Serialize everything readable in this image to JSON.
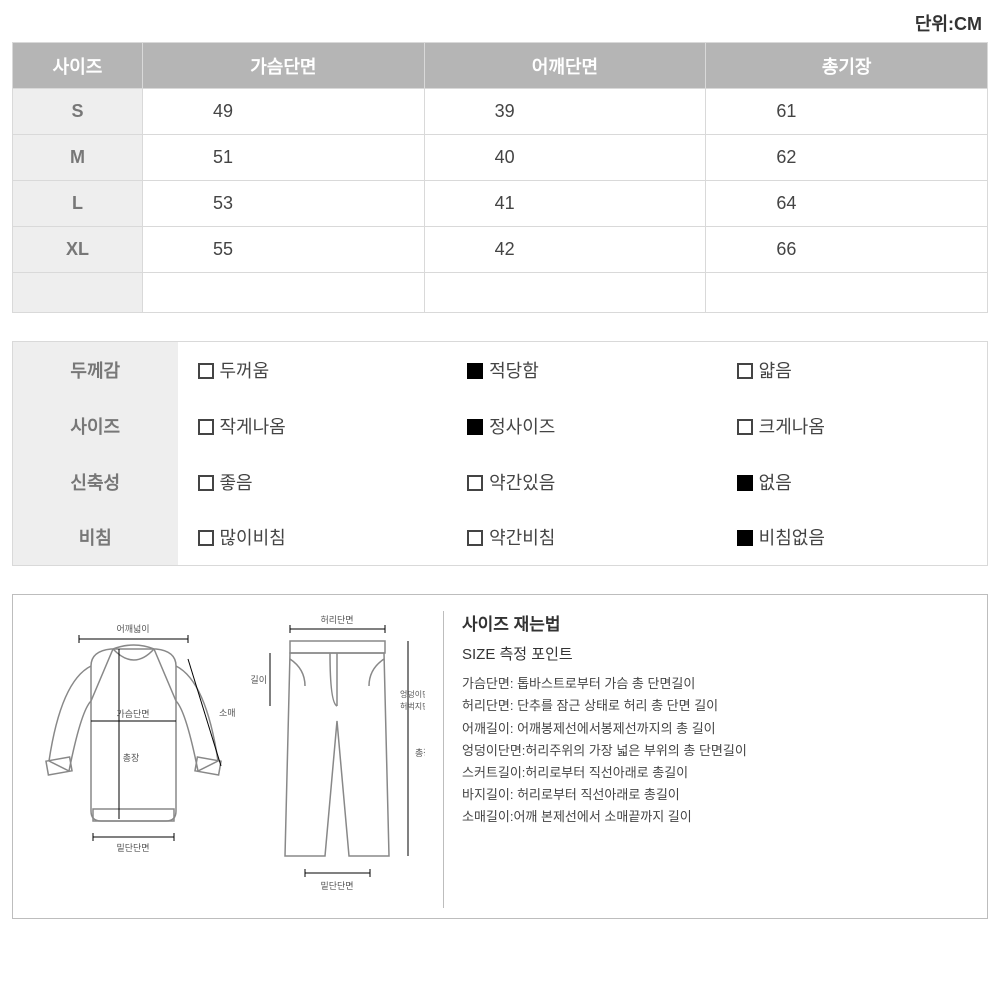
{
  "unit_label": "단위:CM",
  "size_table": {
    "columns": [
      "사이즈",
      "가슴단면",
      "어깨단면",
      "총기장"
    ],
    "rows": [
      {
        "size": "S",
        "values": [
          "49",
          "39",
          "61"
        ]
      },
      {
        "size": "M",
        "values": [
          "51",
          "40",
          "62"
        ]
      },
      {
        "size": "L",
        "values": [
          "53",
          "41",
          "64"
        ]
      },
      {
        "size": "XL",
        "values": [
          "55",
          "42",
          "66"
        ]
      }
    ],
    "header_bg": "#b5b5b5",
    "header_color": "#ffffff",
    "size_col_bg": "#eeeeee",
    "border_color": "#d9d9d9"
  },
  "attributes": {
    "rows": [
      {
        "label": "두께감",
        "options": [
          {
            "text": "두꺼움",
            "checked": false
          },
          {
            "text": "적당함",
            "checked": true
          },
          {
            "text": "얇음",
            "checked": false
          }
        ]
      },
      {
        "label": "사이즈",
        "options": [
          {
            "text": "작게나옴",
            "checked": false
          },
          {
            "text": "정사이즈",
            "checked": true
          },
          {
            "text": "크게나옴",
            "checked": false
          }
        ]
      },
      {
        "label": "신축성",
        "options": [
          {
            "text": "좋음",
            "checked": false
          },
          {
            "text": "약간있음",
            "checked": false
          },
          {
            "text": "없음",
            "checked": true
          }
        ]
      },
      {
        "label": "비침",
        "options": [
          {
            "text": "많이비침",
            "checked": false
          },
          {
            "text": "약간비침",
            "checked": false
          },
          {
            "text": "비침없음",
            "checked": true
          }
        ]
      }
    ],
    "label_bg": "#eeeeee"
  },
  "guide": {
    "title1": "사이즈 재는법",
    "title2": "SIZE 측정 포인트",
    "lines": [
      "가슴단면: 톱바스트로부터 가슴 총 단면길이",
      "허리단면: 단추를 잠근 상태로 허리 총 단면 길이",
      "어깨길이: 어깨봉제선에서봉제선까지의 총 길이",
      "엉덩이단면:허리주위의 가장 넓은 부위의 총 단면길이",
      "스커트길이:허리로부터 직선아래로 총길이",
      "바지길이: 허리로부터 직선아래로 총길이",
      "소매길이:어깨 본제선에서 소매끝까지 길이"
    ],
    "shirt_labels": {
      "shoulder": "어깨넓이",
      "chest": "가슴단면",
      "total": "총장",
      "sleeve": "소매길이",
      "hem": "밑단단면"
    },
    "pants_labels": {
      "waist": "허리단면",
      "thigh": "밑위길이",
      "hip1": "엉덩이단면",
      "hip2": "허벅지단면",
      "total": "총장",
      "hem": "밑단단면"
    }
  }
}
